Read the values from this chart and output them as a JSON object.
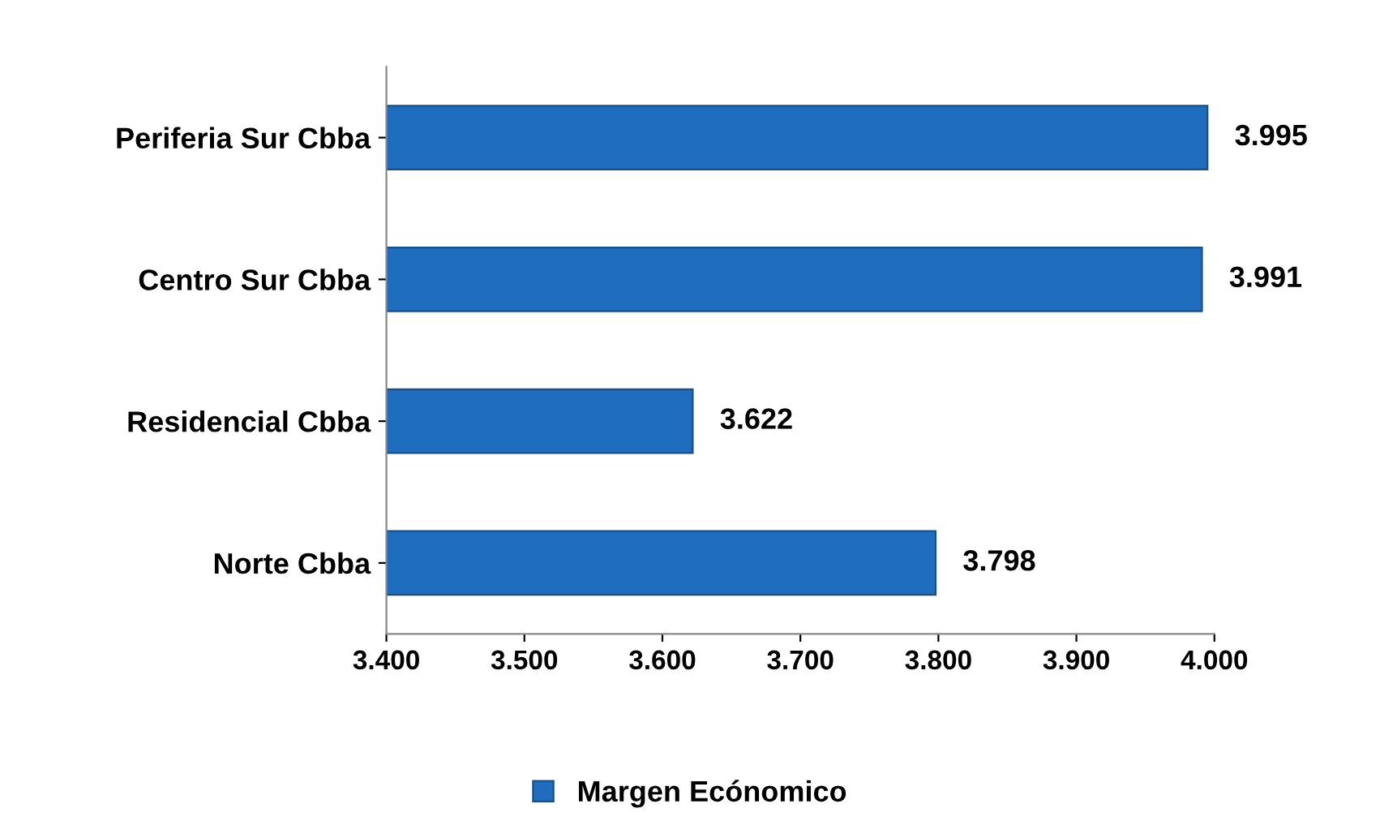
{
  "chart_data": {
    "type": "bar",
    "orientation": "horizontal",
    "categories": [
      "Periferia Sur Cbba",
      "Centro Sur Cbba",
      "Residencial Cbba",
      "Norte Cbba"
    ],
    "series": [
      {
        "name": "Margen Ecónomico",
        "color": "#1f6dbf",
        "values": [
          3.995,
          3.991,
          3.622,
          3.798
        ]
      }
    ],
    "xlim": [
      3.4,
      4.0
    ],
    "xticks": [
      {
        "value": 3.4,
        "label": "3.400"
      },
      {
        "value": 3.5,
        "label": "3.500"
      },
      {
        "value": 3.6,
        "label": "3.600"
      },
      {
        "value": 3.7,
        "label": "3.700"
      },
      {
        "value": 3.8,
        "label": "3.800"
      },
      {
        "value": 3.9,
        "label": "3.900"
      },
      {
        "value": 4.0,
        "label": "4.000"
      }
    ],
    "data_labels": true,
    "grid": false,
    "legend": "bottom"
  }
}
